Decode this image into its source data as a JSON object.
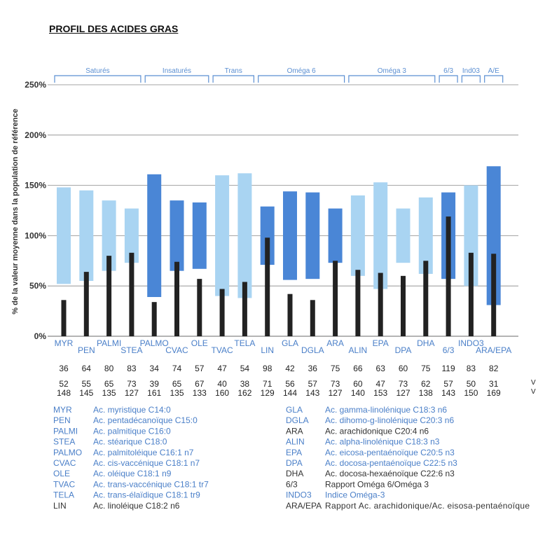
{
  "page": {
    "title": "PROFIL DES ACIDES GRAS"
  },
  "chart_data": {
    "type": "bar",
    "ylabel": "% de la valeur moyenne dans la population de référence",
    "ylim": [
      0,
      250
    ],
    "y_ticks": [
      0,
      50,
      100,
      150,
      200,
      250
    ],
    "y_tick_labels": [
      "0%",
      "50%",
      "100%",
      "150%",
      "200%",
      "250%"
    ],
    "grid": true,
    "categories": [
      "MYR",
      "PEN",
      "PALMI",
      "STEA",
      "PALMO",
      "CVAC",
      "OLE",
      "TVAC",
      "TELA",
      "LIN",
      "GLA",
      "DGLA",
      "ARA",
      "ALIN",
      "EPA",
      "DPA",
      "DHA",
      "6/3",
      "INDO3",
      "ARA/EPA"
    ],
    "series": [
      {
        "values": [
          36,
          64,
          80,
          83,
          34,
          74,
          57,
          47,
          54,
          98,
          42,
          36,
          75,
          66,
          63,
          60,
          75,
          119,
          83,
          82
        ]
      },
      {
        "low": [
          52,
          55,
          65,
          73,
          39,
          65,
          67,
          40,
          38,
          71,
          56,
          57,
          73,
          60,
          47,
          73,
          62,
          57,
          50,
          31
        ]
      },
      {
        "high": [
          148,
          145,
          135,
          127,
          161,
          135,
          133,
          160,
          162,
          129,
          144,
          143,
          127,
          140,
          153,
          127,
          138,
          143,
          150,
          169
        ]
      }
    ],
    "range_shade": [
      "light",
      "light",
      "light",
      "light",
      "dark",
      "dark",
      "dark",
      "light",
      "light",
      "dark",
      "dark",
      "dark",
      "dark",
      "light",
      "light",
      "light",
      "light",
      "dark",
      "light",
      "dark"
    ],
    "groups": [
      {
        "label": "Saturés",
        "from": 0,
        "to": 3
      },
      {
        "label": "Insaturés",
        "from": 4,
        "to": 6
      },
      {
        "label": "Trans",
        "from": 7,
        "to": 8
      },
      {
        "label": "Oméga 6",
        "from": 9,
        "to": 12
      },
      {
        "label": "Oméga 3",
        "from": 13,
        "to": 16
      },
      {
        "label": "6/3",
        "from": 17,
        "to": 17
      },
      {
        "label": "Ind03",
        "from": 18,
        "to": 18
      },
      {
        "label": "A/E",
        "from": 19,
        "to": 19
      }
    ],
    "row_labels": [
      "V",
      "V"
    ],
    "colors": {
      "light": "#a9d4f2",
      "dark": "#4a86d6",
      "bar": "#222222",
      "label": "#4a7fc8",
      "grid": "#888888",
      "bracket": "#5b8fd2"
    }
  },
  "glossary": {
    "left": [
      {
        "code": "MYR",
        "desc": "Ac. myristique C14:0"
      },
      {
        "code": "PEN",
        "desc": "Ac. pentadécanoïque C15:0"
      },
      {
        "code": "PALMI",
        "desc": "Ac. palmitique C16:0"
      },
      {
        "code": "STEA",
        "desc": "Ac. stéarique C18:0"
      },
      {
        "code": "PALMO",
        "desc": "Ac. palmitoléique C16:1 n7"
      },
      {
        "code": "CVAC",
        "desc": "Ac. cis-vaccénique C18:1 n7"
      },
      {
        "code": "OLE",
        "desc": "Ac. oléique C18:1 n9"
      },
      {
        "code": "TVAC",
        "desc": "Ac. trans-vaccénique C18:1 tr7"
      },
      {
        "code": "TELA",
        "desc": "Ac. trans-élaïdique C18:1 tr9"
      },
      {
        "code": "LIN",
        "desc": "Ac. linoléique C18:2 n6"
      }
    ],
    "right": [
      {
        "code": "GLA",
        "desc": "Ac. gamma-linolénique C18:3 n6"
      },
      {
        "code": "DGLA",
        "desc": "Ac. dihomo-g-linolénique C20:3 n6"
      },
      {
        "code": "ARA",
        "desc": "Ac. arachidonique C20:4 n6"
      },
      {
        "code": "ALIN",
        "desc": "Ac. alpha-linolénique C18:3 n3"
      },
      {
        "code": "EPA",
        "desc": "Ac. eicosa-pentaénoïque C20:5 n3"
      },
      {
        "code": "DPA",
        "desc": "Ac. docosa-pentaénoïque C22:5 n3"
      },
      {
        "code": "DHA",
        "desc": "Ac. docosa-hexaénoïque C22:6 n3"
      },
      {
        "code": "6/3",
        "desc": "Rapport Oméga 6/Oméga 3"
      },
      {
        "code": "INDO3",
        "desc": "Indice Oméga-3"
      },
      {
        "code": "ARA/EPA",
        "desc": "Rapport Ac. arachidonique/Ac. eisosa-pentaénoïque"
      }
    ]
  }
}
